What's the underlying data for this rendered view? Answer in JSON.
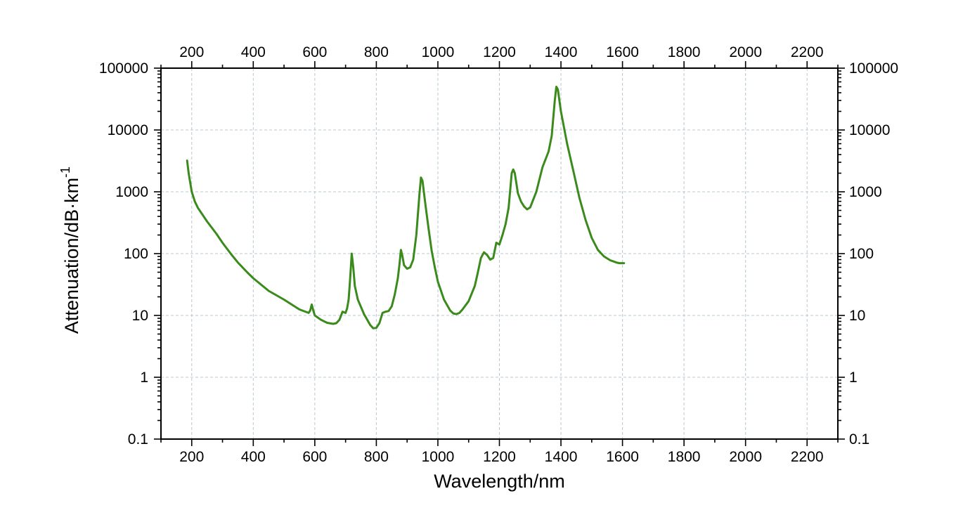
{
  "chart_data": {
    "type": "line",
    "xlabel": "Wavelength/nm",
    "ylabel": "Attenuation/dB·km",
    "ylabel_superscript": "-1",
    "x_axis_scale": "linear",
    "y_axis_scale": "log",
    "xlim": [
      100,
      2300
    ],
    "ylim": [
      0.1,
      100000
    ],
    "x_ticks": [
      200,
      400,
      600,
      800,
      1000,
      1200,
      1400,
      1600,
      1800,
      2000,
      2200
    ],
    "x_tick_labels": [
      "200",
      "400",
      "600",
      "800",
      "1000",
      "1200",
      "1400",
      "1600",
      "1800",
      "2000",
      "2200"
    ],
    "y_ticks": [
      0.1,
      1,
      10,
      100,
      1000,
      10000,
      100000
    ],
    "y_tick_labels": [
      "0.1",
      "1",
      "10",
      "100",
      "1000",
      "10000",
      "100000"
    ],
    "mirror_axes": "top and right axes repeat the tick labels",
    "grid": true,
    "colors": {
      "series": "#3a8a1c",
      "grid": "#b8c8d0",
      "axis": "#000000"
    },
    "series": [
      {
        "x": [
          185,
          190,
          200,
          210,
          220,
          250,
          280,
          300,
          330,
          350,
          380,
          400,
          450,
          500,
          550,
          580,
          585,
          590,
          595,
          600,
          620,
          640,
          660,
          670,
          680,
          690,
          700,
          705,
          710,
          715,
          720,
          725,
          730,
          740,
          760,
          780,
          790,
          800,
          810,
          820,
          830,
          840,
          850,
          860,
          870,
          875,
          880,
          885,
          890,
          900,
          910,
          920,
          930,
          940,
          945,
          950,
          960,
          970,
          980,
          990,
          1000,
          1020,
          1040,
          1050,
          1060,
          1070,
          1080,
          1100,
          1120,
          1130,
          1140,
          1150,
          1160,
          1170,
          1180,
          1190,
          1200,
          1210,
          1220,
          1230,
          1240,
          1245,
          1250,
          1260,
          1270,
          1280,
          1290,
          1300,
          1320,
          1340,
          1360,
          1370,
          1380,
          1385,
          1390,
          1400,
          1420,
          1440,
          1460,
          1480,
          1500,
          1520,
          1540,
          1560,
          1580,
          1590,
          1600,
          1605
        ],
        "y": [
          3200,
          2000,
          1000,
          700,
          550,
          330,
          210,
          150,
          95,
          72,
          50,
          40,
          25,
          18,
          12.5,
          11,
          12,
          15,
          12,
          10,
          8.5,
          7.6,
          7.3,
          7.5,
          8.5,
          11.5,
          11,
          13,
          18,
          40,
          100,
          60,
          30,
          18,
          10.5,
          7,
          6.2,
          6.3,
          7.5,
          11,
          11.5,
          11.8,
          14,
          22,
          40,
          65,
          115,
          90,
          65,
          57,
          60,
          80,
          200,
          900,
          1700,
          1500,
          600,
          250,
          110,
          60,
          35,
          18,
          12,
          10.8,
          10.5,
          11,
          12.5,
          17,
          30,
          50,
          85,
          105,
          95,
          80,
          85,
          150,
          140,
          200,
          300,
          550,
          2000,
          2300,
          2000,
          950,
          700,
          580,
          520,
          560,
          1000,
          2500,
          4500,
          8000,
          30000,
          50000,
          45000,
          20000,
          6000,
          2200,
          800,
          350,
          180,
          115,
          90,
          78,
          72,
          70,
          70,
          70
        ]
      }
    ]
  }
}
